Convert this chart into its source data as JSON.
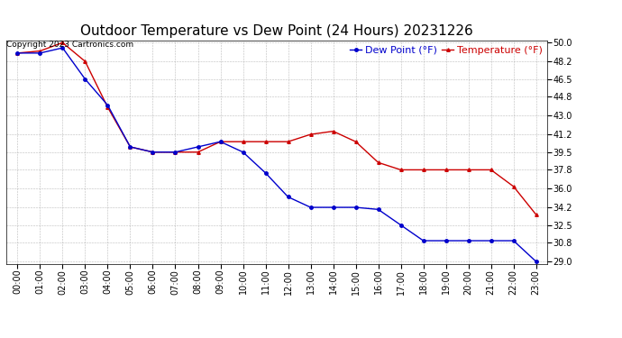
{
  "title": "Outdoor Temperature vs Dew Point (24 Hours) 20231226",
  "copyright_text": "Copyright 2023 Cartronics.com",
  "legend_dew": "Dew Point (°F)",
  "legend_temp": "Temperature (°F)",
  "hours": [
    "00:00",
    "01:00",
    "02:00",
    "03:00",
    "04:00",
    "05:00",
    "06:00",
    "07:00",
    "08:00",
    "09:00",
    "10:00",
    "11:00",
    "12:00",
    "13:00",
    "14:00",
    "15:00",
    "16:00",
    "17:00",
    "18:00",
    "19:00",
    "20:00",
    "21:00",
    "22:00",
    "23:00"
  ],
  "temperature": [
    49.0,
    49.2,
    50.0,
    48.2,
    43.8,
    40.0,
    39.5,
    39.5,
    39.5,
    40.5,
    40.5,
    40.5,
    40.5,
    41.2,
    41.5,
    40.5,
    38.5,
    37.8,
    37.8,
    37.8,
    37.8,
    37.8,
    36.2,
    33.5
  ],
  "dew_point": [
    49.0,
    49.0,
    49.5,
    46.5,
    44.0,
    40.0,
    39.5,
    39.5,
    40.0,
    40.5,
    39.5,
    37.5,
    35.2,
    34.2,
    34.2,
    34.2,
    34.0,
    32.5,
    31.0,
    31.0,
    31.0,
    31.0,
    31.0,
    29.0
  ],
  "temp_color": "#cc0000",
  "dew_color": "#0000cc",
  "ylim_min": 29.0,
  "ylim_max": 50.0,
  "yticks": [
    29.0,
    30.8,
    32.5,
    34.2,
    36.0,
    37.8,
    39.5,
    41.2,
    43.0,
    44.8,
    46.5,
    48.2,
    50.0
  ],
  "bg_color": "#ffffff",
  "grid_color": "#aaaaaa",
  "title_fontsize": 11,
  "tick_fontsize": 7,
  "legend_fontsize": 8,
  "copyright_fontsize": 6.5,
  "fig_width": 6.9,
  "fig_height": 3.75,
  "fig_dpi": 100
}
